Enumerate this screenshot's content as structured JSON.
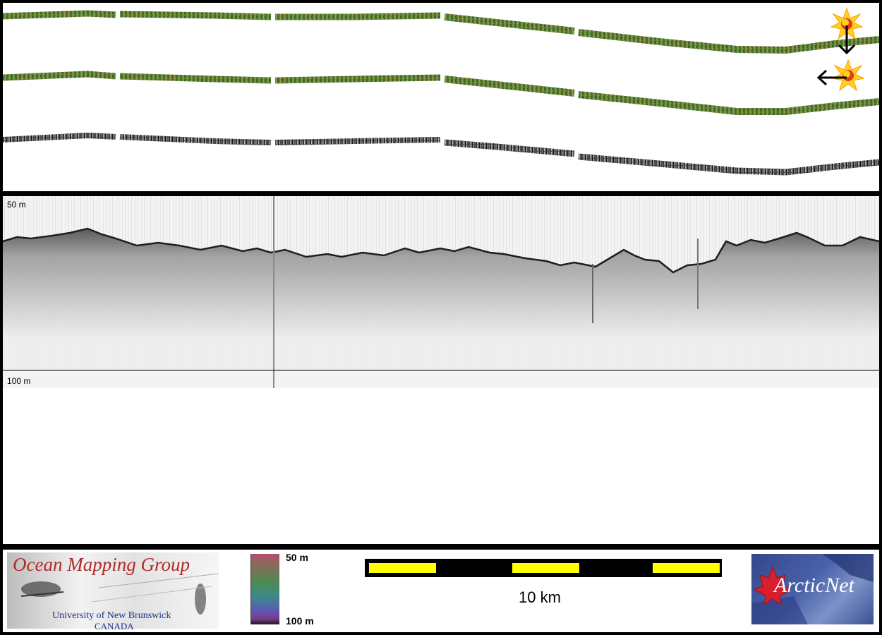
{
  "profile": {
    "depth_top_label": "50 m",
    "depth_bottom_label": "100 m"
  },
  "legend": {
    "colorbar_top_label": "50 m",
    "colorbar_bottom_label": "100 m"
  },
  "scalebar": {
    "label": "10 km"
  },
  "logos": {
    "omg": {
      "title": "Ocean Mapping Group",
      "university": "University of New Brunswick",
      "country": "CANADA"
    },
    "arcticnet": {
      "name": "ArcticNet"
    }
  },
  "icons": [
    "sun-direction-icon",
    "arrow-down-icon",
    "arrow-left-icon",
    "maple-leaf-icon"
  ],
  "colors": {
    "scalebar_fill": "#ffff00",
    "swath_green": "#5f8a3a",
    "omg_title": "#b02a25",
    "omg_subtitle": "#1f2f8a"
  }
}
